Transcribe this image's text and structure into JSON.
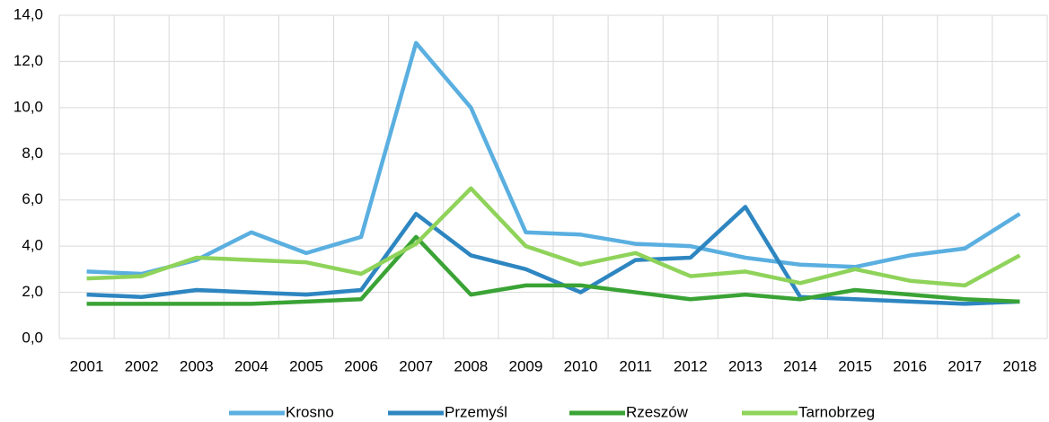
{
  "chart_data": {
    "type": "line",
    "categories": [
      "2001",
      "2002",
      "2003",
      "2004",
      "2005",
      "2006",
      "2007",
      "2008",
      "2009",
      "2010",
      "2011",
      "2012",
      "2013",
      "2014",
      "2015",
      "2016",
      "2017",
      "2018"
    ],
    "series": [
      {
        "name": "Krosno",
        "color": "#5aafe0",
        "values": [
          2.9,
          2.8,
          3.4,
          4.6,
          3.7,
          4.4,
          12.8,
          10.0,
          4.6,
          4.5,
          4.1,
          4.0,
          3.5,
          3.2,
          3.1,
          3.6,
          3.9,
          5.4
        ]
      },
      {
        "name": "Przemyśl",
        "color": "#2e86c1",
        "values": [
          1.9,
          1.8,
          2.1,
          2.0,
          1.9,
          2.1,
          5.4,
          3.6,
          3.0,
          2.0,
          3.4,
          3.5,
          5.7,
          1.8,
          1.7,
          1.6,
          1.5,
          1.6
        ]
      },
      {
        "name": "Rzeszów",
        "color": "#3aa335",
        "values": [
          1.5,
          1.5,
          1.5,
          1.5,
          1.6,
          1.7,
          4.4,
          1.9,
          2.3,
          2.3,
          2.0,
          1.7,
          1.9,
          1.7,
          2.1,
          1.9,
          1.7,
          1.6
        ]
      },
      {
        "name": "Tarnobrzeg",
        "color": "#8fd35a",
        "values": [
          2.6,
          2.7,
          3.5,
          3.4,
          3.3,
          2.8,
          4.1,
          6.5,
          4.0,
          3.2,
          3.7,
          2.7,
          2.9,
          2.4,
          3.0,
          2.5,
          2.3,
          3.6
        ]
      }
    ],
    "ylim": [
      0,
      14
    ],
    "yticks": [
      {
        "value": 0,
        "label": "0,0"
      },
      {
        "value": 2,
        "label": "2,0"
      },
      {
        "value": 4,
        "label": "4,0"
      },
      {
        "value": 6,
        "label": "6,0"
      },
      {
        "value": 8,
        "label": "8,0"
      },
      {
        "value": 10,
        "label": "10,0"
      },
      {
        "value": 12,
        "label": "12,0"
      },
      {
        "value": 14,
        "label": "14,0"
      }
    ],
    "grid": true,
    "legend": "bottom"
  }
}
